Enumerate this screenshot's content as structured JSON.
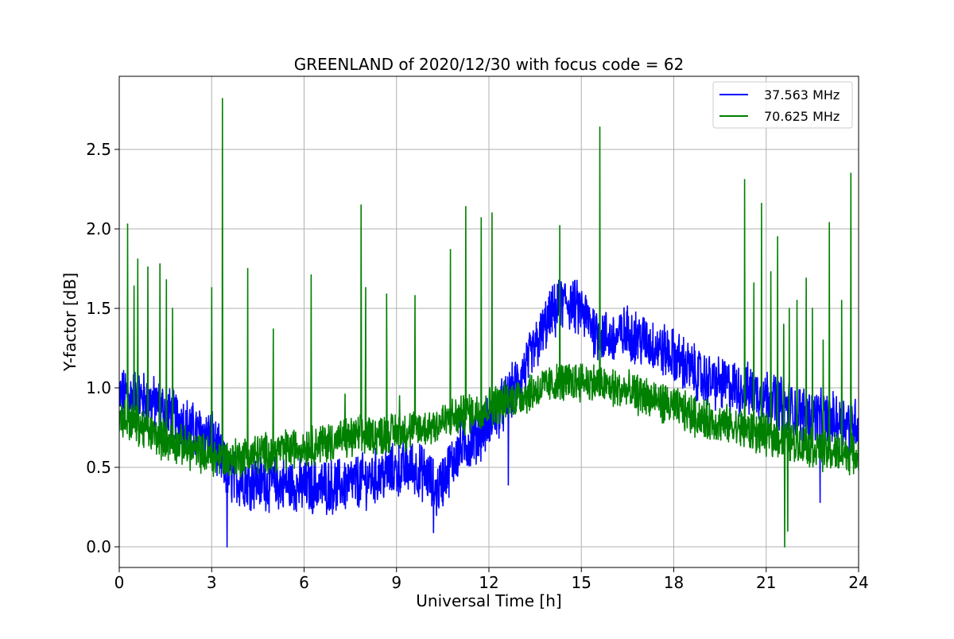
{
  "chart_data": {
    "type": "line",
    "title": "GREENLAND of 2020/12/30 with focus code = 62",
    "xlabel": "Universal Time [h]",
    "ylabel": "Y-factor [dB]",
    "xlim": [
      0,
      24
    ],
    "ylim": [
      -0.13,
      2.96
    ],
    "x_ticks": [
      "0",
      "3",
      "6",
      "9",
      "12",
      "15",
      "18",
      "21",
      "24"
    ],
    "y_ticks": [
      "0.0",
      "0.5",
      "1.0",
      "1.5",
      "2.0",
      "2.5"
    ],
    "grid": true,
    "legend_position": "top-right",
    "series": [
      {
        "name": "37.563 MHz",
        "color": "#0000ff",
        "baseline": {
          "x": [
            0,
            0.5,
            1,
            1.5,
            2,
            2.5,
            3,
            3.5,
            4,
            5,
            6,
            7,
            8,
            9,
            9.5,
            10,
            10.3,
            11,
            11.5,
            12,
            12.5,
            13,
            13.5,
            14,
            14.5,
            15,
            15.5,
            16,
            16.5,
            17,
            18,
            19,
            20,
            21,
            22,
            23,
            24
          ],
          "y": [
            0.95,
            0.95,
            0.92,
            0.85,
            0.8,
            0.72,
            0.7,
            0.45,
            0.42,
            0.4,
            0.38,
            0.38,
            0.42,
            0.48,
            0.5,
            0.45,
            0.35,
            0.6,
            0.68,
            0.78,
            0.9,
            1.05,
            1.25,
            1.45,
            1.55,
            1.48,
            1.35,
            1.3,
            1.35,
            1.3,
            1.2,
            1.05,
            1.0,
            0.95,
            0.85,
            0.8,
            0.78
          ],
          "noise_amplitude": 0.15
        },
        "spikes": [
          {
            "x": 12.63,
            "y": 0.39
          },
          {
            "x": 3.5,
            "y": 0.0
          },
          {
            "x": 22.75,
            "y": 0.28
          },
          {
            "x": 10.2,
            "y": 0.09
          }
        ]
      },
      {
        "name": "70.625 MHz",
        "color": "#008000",
        "baseline": {
          "x": [
            0,
            0.5,
            1,
            1.5,
            2,
            2.5,
            3,
            3.5,
            4,
            5,
            6,
            7,
            8,
            9,
            10,
            11,
            12,
            13,
            14,
            15,
            16,
            17,
            18,
            19,
            20,
            21,
            22,
            23,
            24
          ],
          "y": [
            0.82,
            0.78,
            0.72,
            0.67,
            0.64,
            0.6,
            0.57,
            0.55,
            0.57,
            0.6,
            0.63,
            0.67,
            0.7,
            0.72,
            0.75,
            0.82,
            0.88,
            0.95,
            1.02,
            1.05,
            1.0,
            0.95,
            0.88,
            0.8,
            0.75,
            0.7,
            0.65,
            0.6,
            0.58
          ],
          "noise_amplitude": 0.11
        },
        "spikes": [
          {
            "x": 0.27,
            "y": 2.03
          },
          {
            "x": 0.48,
            "y": 1.64
          },
          {
            "x": 0.6,
            "y": 1.81
          },
          {
            "x": 0.93,
            "y": 1.76
          },
          {
            "x": 1.32,
            "y": 1.78
          },
          {
            "x": 1.53,
            "y": 1.68
          },
          {
            "x": 1.73,
            "y": 1.5
          },
          {
            "x": 3.0,
            "y": 1.63
          },
          {
            "x": 3.35,
            "y": 2.82
          },
          {
            "x": 4.17,
            "y": 1.75
          },
          {
            "x": 5.0,
            "y": 1.37
          },
          {
            "x": 6.23,
            "y": 1.71
          },
          {
            "x": 7.33,
            "y": 0.96
          },
          {
            "x": 7.85,
            "y": 2.15
          },
          {
            "x": 8.0,
            "y": 1.63
          },
          {
            "x": 8.68,
            "y": 1.59
          },
          {
            "x": 9.1,
            "y": 0.95
          },
          {
            "x": 9.6,
            "y": 1.58
          },
          {
            "x": 10.75,
            "y": 1.87
          },
          {
            "x": 11.25,
            "y": 2.14
          },
          {
            "x": 11.75,
            "y": 2.07
          },
          {
            "x": 12.1,
            "y": 2.1
          },
          {
            "x": 14.3,
            "y": 2.02
          },
          {
            "x": 15.6,
            "y": 2.64
          },
          {
            "x": 20.3,
            "y": 2.31
          },
          {
            "x": 20.6,
            "y": 1.66
          },
          {
            "x": 20.85,
            "y": 2.16
          },
          {
            "x": 21.15,
            "y": 1.73
          },
          {
            "x": 21.37,
            "y": 1.95
          },
          {
            "x": 21.57,
            "y": 1.4
          },
          {
            "x": 21.75,
            "y": 1.5
          },
          {
            "x": 22.0,
            "y": 1.55
          },
          {
            "x": 22.3,
            "y": 1.69
          },
          {
            "x": 22.5,
            "y": 1.5
          },
          {
            "x": 22.85,
            "y": 1.3
          },
          {
            "x": 23.05,
            "y": 2.04
          },
          {
            "x": 23.45,
            "y": 1.55
          },
          {
            "x": 23.75,
            "y": 2.35
          }
        ],
        "dips": [
          {
            "x": 21.6,
            "y": 0.0
          },
          {
            "x": 21.7,
            "y": 0.1
          }
        ]
      }
    ]
  }
}
